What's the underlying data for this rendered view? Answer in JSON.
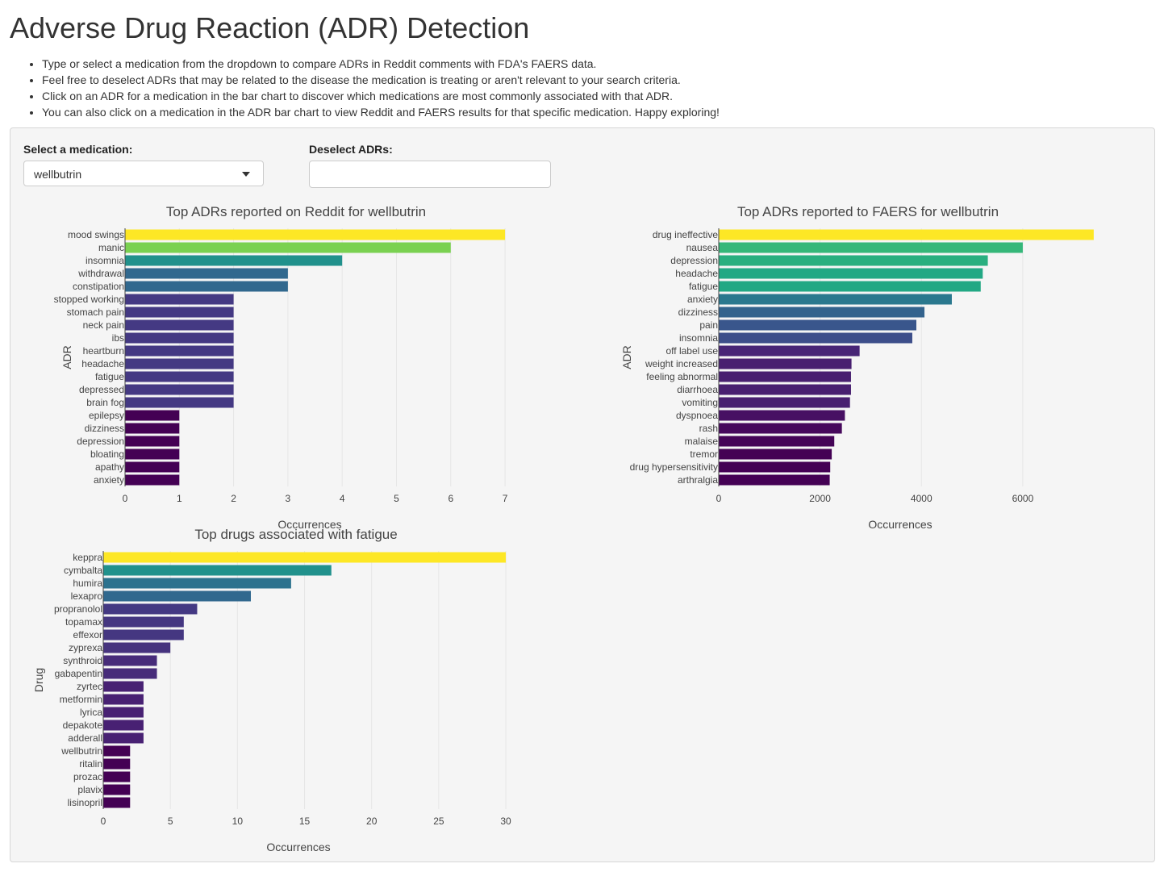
{
  "page": {
    "title": "Adverse Drug Reaction (ADR) Detection",
    "instructions": [
      "Type or select a medication from the dropdown to compare ADRs in Reddit comments with FDA's FAERS data.",
      "Feel free to deselect ADRs that may be related to the disease the medication is treating or aren't relevant to your search criteria.",
      "Click on an ADR for a medication in the bar chart to discover which medications are most commonly associated with that ADR.",
      "You can also click on a medication in the ADR bar chart to view Reddit and FAERS results for that specific medication. Happy exploring!"
    ]
  },
  "controls": {
    "medication_label": "Select a medication:",
    "medication_value": "wellbutrin",
    "deselect_label": "Deselect ADRs:",
    "deselect_value": ""
  },
  "chart_data": [
    {
      "type": "bar",
      "orientation": "horizontal",
      "title": "Top ADRs reported on Reddit for wellbutrin",
      "xlabel": "Occurrences",
      "ylabel": "ADR",
      "xlim": [
        0,
        7.4
      ],
      "xticks": [
        0,
        1,
        2,
        3,
        4,
        5,
        6,
        7
      ],
      "grid": true,
      "categories": [
        "mood swings",
        "manic",
        "insomnia",
        "withdrawal",
        "constipation",
        "stopped working",
        "stomach pain",
        "neck pain",
        "ibs",
        "heartburn",
        "headache",
        "fatigue",
        "depressed",
        "brain fog",
        "epilepsy",
        "dizziness",
        "depression",
        "bloating",
        "apathy",
        "anxiety"
      ],
      "values": [
        7,
        6,
        4,
        3,
        3,
        2,
        2,
        2,
        2,
        2,
        2,
        2,
        2,
        2,
        1,
        1,
        1,
        1,
        1,
        1
      ],
      "colors": [
        "#fde725",
        "#7ad151",
        "#21918c",
        "#31688e",
        "#31688e",
        "#443983",
        "#443983",
        "#443983",
        "#443983",
        "#443983",
        "#443983",
        "#443983",
        "#443983",
        "#443983",
        "#440154",
        "#440154",
        "#440154",
        "#440154",
        "#440154",
        "#440154"
      ]
    },
    {
      "type": "bar",
      "orientation": "horizontal",
      "title": "Top ADRs reported to FAERS for wellbutrin",
      "xlabel": "Occurrences",
      "ylabel": "ADR",
      "xlim": [
        0,
        7800
      ],
      "xticks": [
        0,
        2000,
        4000,
        6000
      ],
      "grid": true,
      "categories": [
        "drug ineffective",
        "nausea",
        "depression",
        "headache",
        "fatigue",
        "anxiety",
        "dizziness",
        "pain",
        "insomnia",
        "off label use",
        "weight increased",
        "feeling abnormal",
        "diarrhoea",
        "vomiting",
        "dyspnoea",
        "rash",
        "malaise",
        "tremor",
        "drug hypersensitivity",
        "arthralgia"
      ],
      "values": [
        7400,
        6000,
        5310,
        5210,
        5170,
        4600,
        4060,
        3900,
        3820,
        2780,
        2620,
        2610,
        2610,
        2590,
        2490,
        2430,
        2280,
        2230,
        2200,
        2190
      ],
      "colors": [
        "#fde725",
        "#35b779",
        "#29af7f",
        "#22a884",
        "#22a884",
        "#2a788e",
        "#33638d",
        "#39568c",
        "#3d4e8a",
        "#482576",
        "#481f70",
        "#481f70",
        "#481f70",
        "#481f70",
        "#471063",
        "#46085c",
        "#450457",
        "#440154",
        "#440154",
        "#440154"
      ]
    },
    {
      "type": "bar",
      "orientation": "horizontal",
      "title": "Top drugs associated with fatigue",
      "xlabel": "Occurrences",
      "ylabel": "Drug",
      "xlim": [
        0,
        31.5
      ],
      "xticks": [
        0,
        5,
        10,
        15,
        20,
        25,
        30
      ],
      "grid": true,
      "categories": [
        "keppra",
        "cymbalta",
        "humira",
        "lexapro",
        "propranolol",
        "topamax",
        "effexor",
        "zyprexa",
        "synthroid",
        "gabapentin",
        "zyrtec",
        "metformin",
        "lyrica",
        "depakote",
        "adderall",
        "wellbutrin",
        "ritalin",
        "prozac",
        "plavix",
        "lisinopril"
      ],
      "values": [
        30,
        17,
        14,
        11,
        7,
        6,
        6,
        5,
        4,
        4,
        3,
        3,
        3,
        3,
        3,
        2,
        2,
        2,
        2,
        2
      ],
      "colors": [
        "#fde725",
        "#21918c",
        "#2c728e",
        "#31688e",
        "#443983",
        "#453781",
        "#453781",
        "#46337e",
        "#472c7a",
        "#472c7a",
        "#482173",
        "#482173",
        "#482173",
        "#482173",
        "#482173",
        "#440154",
        "#440154",
        "#440154",
        "#440154",
        "#440154"
      ]
    }
  ]
}
